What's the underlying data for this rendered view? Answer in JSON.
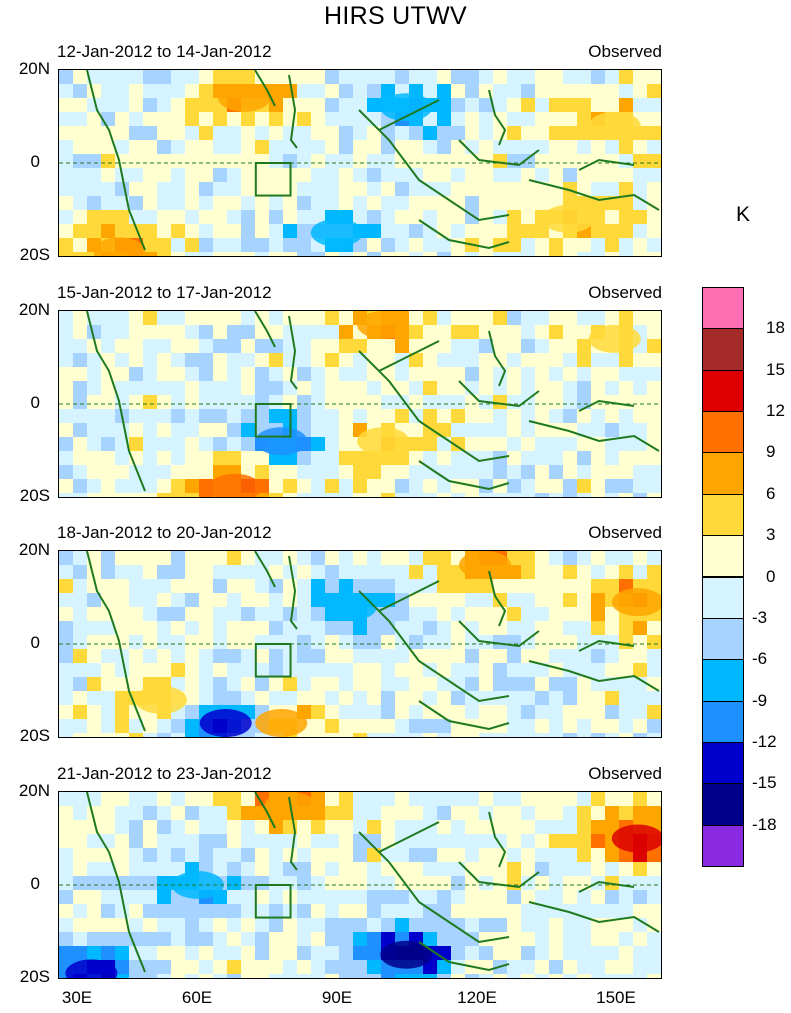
{
  "title": "HIRS UTWV",
  "unit_label": "K",
  "panels": [
    {
      "date_range": "12-Jan-2012 to 14-Jan-2012",
      "label_right": "Observed"
    },
    {
      "date_range": "15-Jan-2012 to 17-Jan-2012",
      "label_right": "Observed"
    },
    {
      "date_range": "18-Jan-2012 to 20-Jan-2012",
      "label_right": "Observed"
    },
    {
      "date_range": "21-Jan-2012 to 23-Jan-2012",
      "label_right": "Observed"
    }
  ],
  "y_ticks": [
    "20N",
    "0",
    "20S"
  ],
  "x_ticks": [
    "30E",
    "60E",
    "90E",
    "120E",
    "150E"
  ],
  "colorbar": {
    "labels": [
      "18",
      "15",
      "12",
      "9",
      "6",
      "3",
      "0",
      "-3",
      "-6",
      "-9",
      "-12",
      "-15",
      "-18"
    ],
    "colors": [
      "#ff6fb4",
      "#a52a2a",
      "#dc0000",
      "#ff7000",
      "#ffa500",
      "#ffd93a",
      "#ffffd0",
      "#d6f4ff",
      "#a6d3ff",
      "#00b8ff",
      "#1e90ff",
      "#0000cd",
      "#00008b",
      "#8a2be2"
    ]
  },
  "chart_data": [
    {
      "type": "heatmap",
      "title": "12-Jan-2012 to 14-Jan-2012",
      "subtitle": "Observed",
      "x_range": [
        30,
        160
      ],
      "y_range": [
        -20,
        20
      ],
      "x_units": "degrees E",
      "y_units": "degrees N",
      "colorbar_levels": [
        -18,
        -15,
        -12,
        -9,
        -6,
        -3,
        0,
        3,
        6,
        9,
        12,
        15,
        18
      ],
      "features": [
        {
          "lon": 70,
          "lat": 14,
          "value": 8
        },
        {
          "lon": 105,
          "lat": 12,
          "value": -7
        },
        {
          "lon": 150,
          "lat": 8,
          "value": 6
        },
        {
          "lon": 140,
          "lat": -12,
          "value": 6
        },
        {
          "lon": 90,
          "lat": -15,
          "value": -6
        },
        {
          "lon": 43,
          "lat": -19,
          "value": 9
        }
      ]
    },
    {
      "type": "heatmap",
      "title": "15-Jan-2012 to 17-Jan-2012",
      "subtitle": "Observed",
      "x_range": [
        30,
        160
      ],
      "y_range": [
        -20,
        20
      ],
      "x_units": "degrees E",
      "y_units": "degrees N",
      "colorbar_levels": [
        -18,
        -15,
        -12,
        -9,
        -6,
        -3,
        0,
        3,
        6,
        9,
        12,
        15,
        18
      ],
      "features": [
        {
          "lon": 68,
          "lat": -18,
          "value": 12
        },
        {
          "lon": 78,
          "lat": -8,
          "value": -9
        },
        {
          "lon": 100,
          "lat": 17,
          "value": 8
        },
        {
          "lon": 100,
          "lat": -8,
          "value": 6
        },
        {
          "lon": 150,
          "lat": 14,
          "value": 4
        }
      ]
    },
    {
      "type": "heatmap",
      "title": "18-Jan-2012 to 20-Jan-2012",
      "subtitle": "Observed",
      "x_range": [
        30,
        160
      ],
      "y_range": [
        -20,
        20
      ],
      "x_units": "degrees E",
      "y_units": "degrees N",
      "colorbar_levels": [
        -18,
        -15,
        -12,
        -9,
        -6,
        -3,
        0,
        3,
        6,
        9,
        12,
        15,
        18
      ],
      "features": [
        {
          "lon": 66,
          "lat": -17,
          "value": -13
        },
        {
          "lon": 93,
          "lat": 8,
          "value": -8
        },
        {
          "lon": 122,
          "lat": 17,
          "value": 9
        },
        {
          "lon": 155,
          "lat": 9,
          "value": 9
        },
        {
          "lon": 52,
          "lat": -12,
          "value": 6
        },
        {
          "lon": 78,
          "lat": -17,
          "value": 7
        }
      ]
    },
    {
      "type": "heatmap",
      "title": "21-Jan-2012 to 23-Jan-2012",
      "subtitle": "Observed",
      "x_range": [
        30,
        160
      ],
      "y_range": [
        -20,
        20
      ],
      "x_units": "degrees E",
      "y_units": "degrees N",
      "colorbar_levels": [
        -18,
        -15,
        -12,
        -9,
        -6,
        -3,
        0,
        3,
        6,
        9,
        12,
        15,
        18
      ],
      "features": [
        {
          "lon": 105,
          "lat": -15,
          "value": -16
        },
        {
          "lon": 155,
          "lat": 10,
          "value": 14
        },
        {
          "lon": 80,
          "lat": 17,
          "value": 9
        },
        {
          "lon": 60,
          "lat": 0,
          "value": -7
        },
        {
          "lon": 37,
          "lat": -19,
          "value": -14
        }
      ]
    }
  ]
}
